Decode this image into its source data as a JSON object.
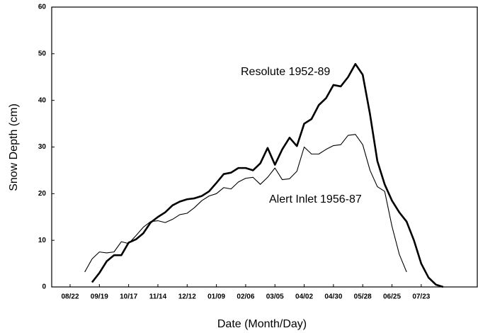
{
  "chart_data": {
    "type": "line",
    "xlabel": "Date  (Month/Day)",
    "ylabel": "Snow Depth (cm)",
    "categories": [
      "08/22",
      null,
      null,
      null,
      "09/19",
      null,
      null,
      null,
      "10/17",
      null,
      null,
      null,
      "11/14",
      null,
      null,
      null,
      "12/12",
      null,
      null,
      null,
      "01/09",
      null,
      null,
      null,
      "02/06",
      null,
      null,
      null,
      "03/05",
      null,
      null,
      null,
      "04/02",
      null,
      null,
      null,
      "04/30",
      null,
      null,
      null,
      "05/28",
      null,
      null,
      null,
      "06/25",
      null,
      null,
      null,
      "07/23",
      null,
      null,
      null
    ],
    "series": [
      {
        "name": "Resolute  1952-89",
        "color": "#000000",
        "values": [
          null,
          null,
          null,
          1,
          3,
          5.5,
          6.8,
          6.8,
          9.5,
          10.2,
          11.5,
          13.8,
          15,
          16,
          17.5,
          18.3,
          18.8,
          19,
          19.5,
          20.5,
          22.3,
          24.2,
          24.5,
          25.5,
          25.5,
          25,
          26.5,
          29.8,
          26.2,
          29.5,
          32,
          30.2,
          35,
          36,
          39,
          40.5,
          43.3,
          43,
          45,
          47.8,
          45.5,
          37,
          27,
          22,
          18.5,
          16,
          14,
          10,
          5,
          2,
          0.5,
          0
        ]
      },
      {
        "name": "Alert Inlet  1956-87",
        "color": "#000000",
        "values": [
          null,
          null,
          3.2,
          6,
          7.5,
          7.3,
          7.5,
          9.7,
          9.3,
          11,
          12.8,
          14,
          14.2,
          13.8,
          14.5,
          15.5,
          15.8,
          17,
          18.5,
          19.5,
          20,
          21.3,
          21,
          22.5,
          23.3,
          23.5,
          22,
          23.5,
          25.5,
          23,
          23.2,
          24.8,
          30,
          28.5,
          28.5,
          29.5,
          30.3,
          30.5,
          32.5,
          32.7,
          30.5,
          25,
          21.5,
          20.5,
          13,
          7,
          3.2,
          null,
          null,
          null,
          null,
          null
        ]
      }
    ],
    "ylim": [
      0,
      60
    ],
    "yticks": [
      0,
      10,
      20,
      30,
      40,
      50,
      60
    ]
  }
}
